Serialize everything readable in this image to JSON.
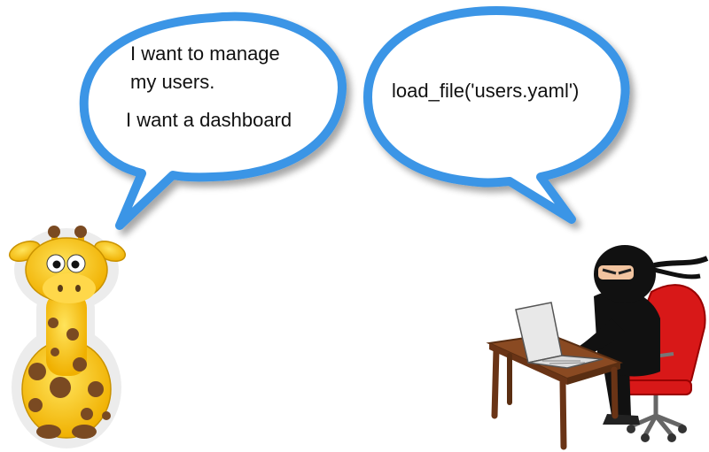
{
  "left_bubble": {
    "line1": "I want to manage",
    "line2": "my users.",
    "line3": "I want a dashboard"
  },
  "right_bubble": {
    "text": "load_file('users.yaml')"
  },
  "colors": {
    "bubble_stroke": "#3a95e6",
    "giraffe_body": "#f6c21b",
    "giraffe_spots": "#7a4a22",
    "ninja": "#111111",
    "chair": "#d81818",
    "desk": "#8a4a22"
  }
}
